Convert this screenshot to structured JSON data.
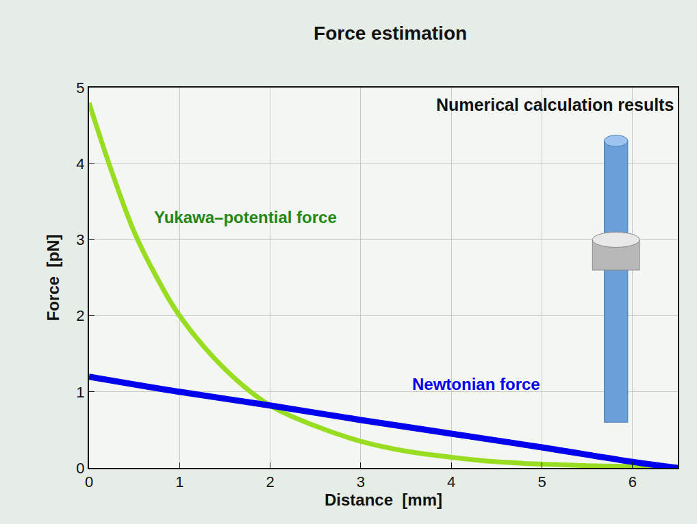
{
  "chart_data": {
    "type": "line",
    "title": "Force estimation",
    "annotations": [
      "Numerical calculation results"
    ],
    "x_label": "Distance  [mm]",
    "y_label": "Force  [pN]",
    "series": [
      {
        "name": "Yukawa–potential force",
        "color": "#99dd22",
        "x": [
          0,
          0.25,
          0.5,
          0.75,
          1,
          1.5,
          2,
          2.5,
          3,
          3.5,
          4,
          4.5,
          5,
          5.5,
          6,
          6.5
        ],
        "values": [
          4.8,
          3.9,
          3.1,
          2.5,
          2.0,
          1.3,
          0.82,
          0.55,
          0.35,
          0.22,
          0.14,
          0.08,
          0.05,
          0.03,
          0.02,
          0.01
        ]
      },
      {
        "name": "Newtonian force",
        "color": "#0000ee",
        "x": [
          0,
          1,
          2,
          3,
          4,
          5,
          6,
          6.5
        ],
        "values": [
          1.2,
          1.0,
          0.82,
          0.63,
          0.45,
          0.27,
          0.08,
          0.0
        ]
      }
    ],
    "xlim": [
      0,
      6.5
    ],
    "xticks": [
      0,
      1,
      2,
      3,
      4,
      5,
      6
    ],
    "ylim": [
      0,
      5
    ],
    "yticks": [
      0,
      1,
      2,
      3,
      4,
      5
    ],
    "grid": true
  }
}
